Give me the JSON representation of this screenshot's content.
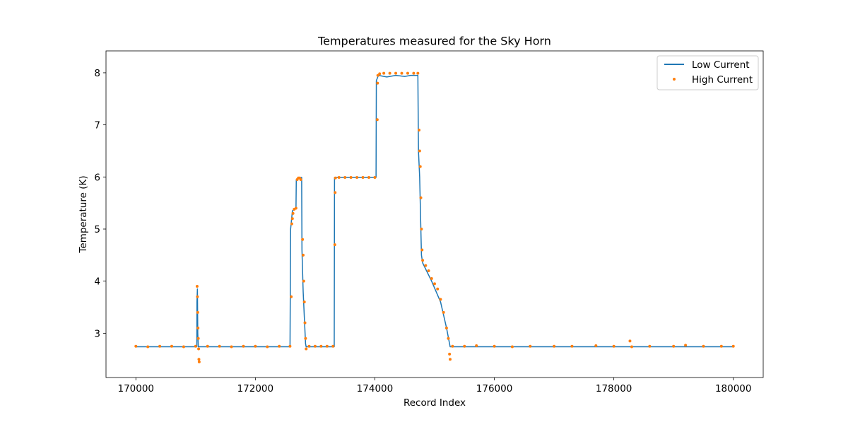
{
  "chart_data": {
    "type": "line",
    "title": "Temperatures measured for the Sky Horn",
    "xlabel": "Record Index",
    "ylabel": "Temperature (K)",
    "xlim": [
      169500,
      180500
    ],
    "ylim": [
      2.15,
      8.42
    ],
    "xticks": [
      170000,
      172000,
      174000,
      176000,
      178000,
      180000
    ],
    "yticks": [
      3,
      4,
      5,
      6,
      7,
      8
    ],
    "grid": false,
    "legend_position": "upper right",
    "series": [
      {
        "name": "Low Current",
        "style": "line",
        "color": "#1f77b4",
        "points": [
          [
            170000,
            2.74
          ],
          [
            171020,
            2.74
          ],
          [
            171022,
            3.6
          ],
          [
            171030,
            3.85
          ],
          [
            171036,
            3.0
          ],
          [
            171045,
            2.74
          ],
          [
            172580,
            2.74
          ],
          [
            172590,
            5.0
          ],
          [
            172620,
            5.35
          ],
          [
            172680,
            5.4
          ],
          [
            172685,
            5.95
          ],
          [
            172750,
            5.99
          ],
          [
            172775,
            5.99
          ],
          [
            172780,
            4.6
          ],
          [
            172800,
            3.8
          ],
          [
            172840,
            2.8
          ],
          [
            172850,
            2.74
          ],
          [
            173320,
            2.74
          ],
          [
            173325,
            5.99
          ],
          [
            174020,
            5.99
          ],
          [
            174025,
            7.85
          ],
          [
            174060,
            7.95
          ],
          [
            174200,
            7.92
          ],
          [
            174350,
            7.95
          ],
          [
            174500,
            7.93
          ],
          [
            174600,
            7.95
          ],
          [
            174720,
            7.95
          ],
          [
            174730,
            6.5
          ],
          [
            174750,
            6.0
          ],
          [
            174770,
            5.0
          ],
          [
            174780,
            4.5
          ],
          [
            174800,
            4.35
          ],
          [
            174950,
            4.0
          ],
          [
            175100,
            3.6
          ],
          [
            175200,
            3.1
          ],
          [
            175260,
            2.74
          ],
          [
            180000,
            2.74
          ]
        ]
      },
      {
        "name": "High Current",
        "style": "scatter",
        "color": "#ff7f0e",
        "points": [
          [
            170000,
            2.75
          ],
          [
            170200,
            2.74
          ],
          [
            170400,
            2.75
          ],
          [
            170600,
            2.75
          ],
          [
            170800,
            2.74
          ],
          [
            171000,
            2.75
          ],
          [
            171025,
            3.9
          ],
          [
            171030,
            3.7
          ],
          [
            171035,
            3.4
          ],
          [
            171040,
            3.1
          ],
          [
            171045,
            2.9
          ],
          [
            171050,
            2.7
          ],
          [
            171055,
            2.5
          ],
          [
            171060,
            2.45
          ],
          [
            171200,
            2.75
          ],
          [
            171400,
            2.75
          ],
          [
            171600,
            2.74
          ],
          [
            171800,
            2.75
          ],
          [
            172000,
            2.75
          ],
          [
            172200,
            2.74
          ],
          [
            172400,
            2.75
          ],
          [
            172580,
            2.75
          ],
          [
            172600,
            3.7
          ],
          [
            172610,
            5.1
          ],
          [
            172620,
            5.2
          ],
          [
            172630,
            5.3
          ],
          [
            172650,
            5.38
          ],
          [
            172680,
            5.4
          ],
          [
            172700,
            5.95
          ],
          [
            172720,
            5.98
          ],
          [
            172740,
            5.98
          ],
          [
            172760,
            5.95
          ],
          [
            172790,
            4.8
          ],
          [
            172800,
            4.5
          ],
          [
            172810,
            4.0
          ],
          [
            172820,
            3.6
          ],
          [
            172830,
            3.2
          ],
          [
            172840,
            2.9
          ],
          [
            172850,
            2.7
          ],
          [
            172900,
            2.75
          ],
          [
            173000,
            2.75
          ],
          [
            173100,
            2.75
          ],
          [
            173200,
            2.75
          ],
          [
            173300,
            2.75
          ],
          [
            173330,
            4.7
          ],
          [
            173335,
            5.7
          ],
          [
            173340,
            5.98
          ],
          [
            173400,
            5.99
          ],
          [
            173500,
            5.99
          ],
          [
            173600,
            5.99
          ],
          [
            173700,
            5.99
          ],
          [
            173800,
            5.99
          ],
          [
            173900,
            5.99
          ],
          [
            174000,
            5.99
          ],
          [
            174040,
            7.1
          ],
          [
            174045,
            7.8
          ],
          [
            174050,
            7.95
          ],
          [
            174080,
            7.98
          ],
          [
            174150,
            7.99
          ],
          [
            174250,
            7.99
          ],
          [
            174350,
            7.99
          ],
          [
            174450,
            7.99
          ],
          [
            174550,
            7.99
          ],
          [
            174650,
            7.99
          ],
          [
            174720,
            7.99
          ],
          [
            174740,
            6.9
          ],
          [
            174750,
            6.5
          ],
          [
            174760,
            6.2
          ],
          [
            174770,
            5.6
          ],
          [
            174780,
            5.0
          ],
          [
            174790,
            4.6
          ],
          [
            174800,
            4.4
          ],
          [
            174850,
            4.3
          ],
          [
            174900,
            4.2
          ],
          [
            174950,
            4.05
          ],
          [
            175000,
            3.95
          ],
          [
            175050,
            3.85
          ],
          [
            175100,
            3.65
          ],
          [
            175150,
            3.4
          ],
          [
            175200,
            3.1
          ],
          [
            175230,
            2.9
          ],
          [
            175250,
            2.6
          ],
          [
            175260,
            2.5
          ],
          [
            175300,
            2.75
          ],
          [
            175500,
            2.75
          ],
          [
            175700,
            2.76
          ],
          [
            176000,
            2.75
          ],
          [
            176300,
            2.74
          ],
          [
            176600,
            2.75
          ],
          [
            177000,
            2.75
          ],
          [
            177300,
            2.75
          ],
          [
            177700,
            2.76
          ],
          [
            178000,
            2.75
          ],
          [
            178270,
            2.85
          ],
          [
            178300,
            2.74
          ],
          [
            178600,
            2.75
          ],
          [
            179000,
            2.75
          ],
          [
            179200,
            2.77
          ],
          [
            179500,
            2.75
          ],
          [
            179800,
            2.75
          ],
          [
            180000,
            2.75
          ]
        ]
      }
    ]
  }
}
